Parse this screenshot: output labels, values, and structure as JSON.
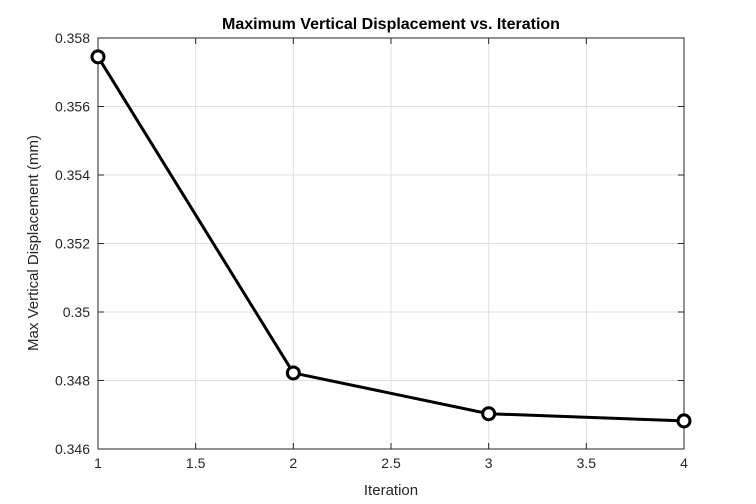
{
  "chart_data": {
    "type": "line",
    "title": "Maximum Vertical Displacement vs. Iteration",
    "xlabel": "Iteration",
    "ylabel": "Max Vertical Displacement (mm)",
    "x": [
      1,
      2,
      3,
      4
    ],
    "series": [
      {
        "values": [
          0.35745,
          0.34822,
          0.34703,
          0.34682
        ]
      }
    ],
    "xlim": [
      1,
      4
    ],
    "ylim": [
      0.346,
      0.358
    ],
    "xticks": [
      1,
      1.5,
      2,
      2.5,
      3,
      3.5,
      4
    ],
    "xtick_labels": [
      "1",
      "1.5",
      "2",
      "2.5",
      "3",
      "3.5",
      "4"
    ],
    "yticks": [
      0.346,
      0.348,
      0.35,
      0.352,
      0.354,
      0.356,
      0.358
    ],
    "ytick_labels": [
      "0.346",
      "0.348",
      "0.35",
      "0.352",
      "0.354",
      "0.356",
      "0.358"
    ],
    "grid": true,
    "marker": "circle",
    "line_color": "#000000",
    "grid_color": "#dfdfdf",
    "axis_color": "#262626"
  }
}
